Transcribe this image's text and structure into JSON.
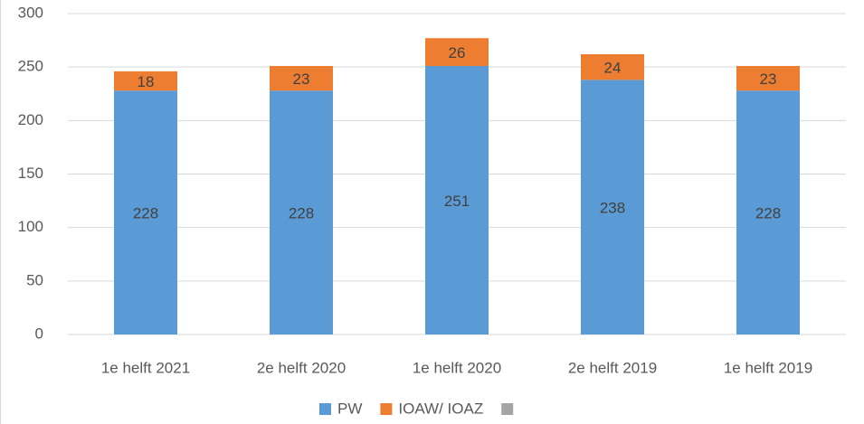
{
  "chart_data": {
    "type": "stacked_bar",
    "categories": [
      "1e helft 2021",
      "2e helft 2020",
      "1e helft 2020",
      "2e helft 2019",
      "1e helft 2019"
    ],
    "series": [
      {
        "name": "PW",
        "color": "#5b9bd5",
        "values": [
          228,
          228,
          251,
          238,
          228
        ]
      },
      {
        "name": "IOAW/ IOAZ",
        "color": "#ed7d31",
        "values": [
          18,
          23,
          26,
          24,
          23
        ]
      },
      {
        "name": null,
        "color": "#a5a5a5",
        "values": [
          null,
          null,
          null,
          null,
          null
        ]
      }
    ],
    "ylim": [
      0,
      300
    ],
    "yticks": [
      0,
      50,
      100,
      150,
      200,
      250,
      300
    ],
    "grid": true,
    "legend": "bottom"
  }
}
